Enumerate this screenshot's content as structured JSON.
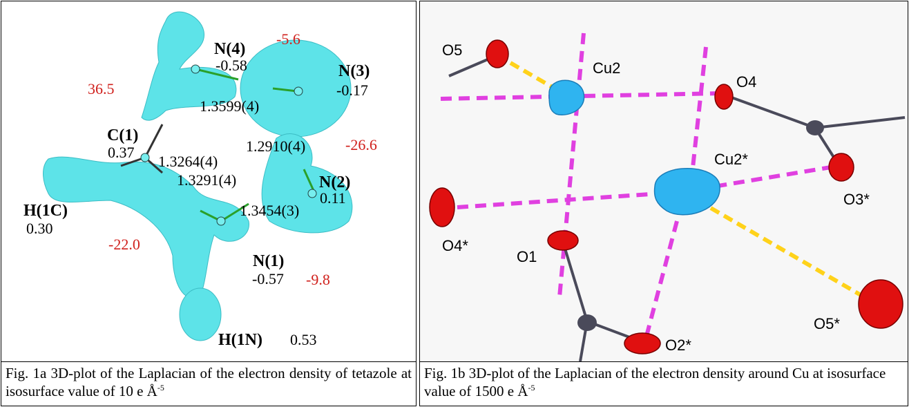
{
  "figures": [
    {
      "labels": [
        "N(4)",
        "-0.58",
        "-5.6",
        "N(3)",
        "-0.17",
        "36.5",
        "1.3599(4)",
        "C(1)",
        "0.37",
        "1.3264(4)",
        "1.2910(4)",
        "-26.6",
        "1.3291(4)",
        "N(2)",
        "0.11",
        "H(1C)",
        "0.30",
        "1.3454(3)",
        "-22.0",
        "N(1)",
        "-0.57",
        "-9.8",
        "H(1N)",
        "0.53"
      ]
    },
    {
      "labels": [
        "O5",
        "Cu2",
        "O4",
        "Cu2*",
        "O4*",
        "O3*",
        "O1",
        "O5*",
        "O2*"
      ]
    }
  ],
  "captions": [
    {
      "text": "Fig. 1a 3D-plot of the Laplacian of the electron density of tetazole at isosurface value of 10 e Å",
      "superscript": "-5"
    },
    {
      "text": "Fig. 1b 3D-plot of the Laplacian of the electron density around Cu at isosurface value of 1500 e Å",
      "superscript": "-5"
    }
  ]
}
